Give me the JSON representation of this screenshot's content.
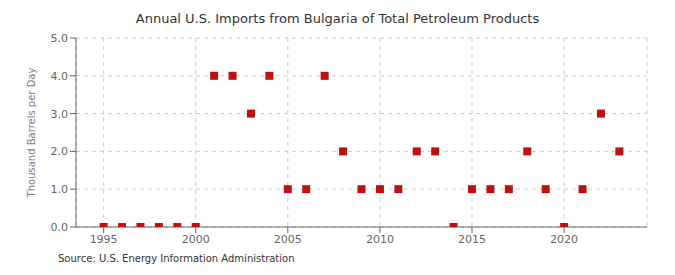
{
  "chart_data": {
    "type": "scatter",
    "title": "Annual U.S. Imports from Bulgaria of Total Petroleum Products",
    "y_label": "Thousand Barrels per Day",
    "annotations": [
      "Source: U.S. Energy Information Administration"
    ],
    "x": [
      1995,
      1996,
      1997,
      1998,
      1999,
      2000,
      2001,
      2002,
      2003,
      2004,
      2005,
      2006,
      2007,
      2008,
      2009,
      2010,
      2011,
      2012,
      2013,
      2014,
      2015,
      2016,
      2017,
      2018,
      2019,
      2020,
      2021,
      2022,
      2023
    ],
    "values": [
      0,
      0,
      0,
      0,
      0,
      0,
      4,
      4,
      3,
      4,
      1,
      1,
      4,
      2,
      1,
      1,
      1,
      2,
      2,
      0,
      1,
      1,
      1,
      2,
      1,
      0,
      1,
      3,
      2
    ],
    "color": "#bb1111",
    "marker": "square",
    "xlim": [
      1993.5,
      2024.5
    ],
    "xticks": [
      1995,
      2000,
      2005,
      2010,
      2015,
      2020
    ],
    "ylim": [
      0,
      5.0
    ],
    "yticks": [
      {
        "value": 0.0,
        "label": "0.0"
      },
      {
        "value": 1.0,
        "label": "1.0"
      },
      {
        "value": 2.0,
        "label": "2.0"
      },
      {
        "value": 3.0,
        "label": "3.0"
      },
      {
        "value": 4.0,
        "label": "4.0"
      },
      {
        "value": 5.0,
        "label": "5.0"
      }
    ],
    "grid": true
  }
}
